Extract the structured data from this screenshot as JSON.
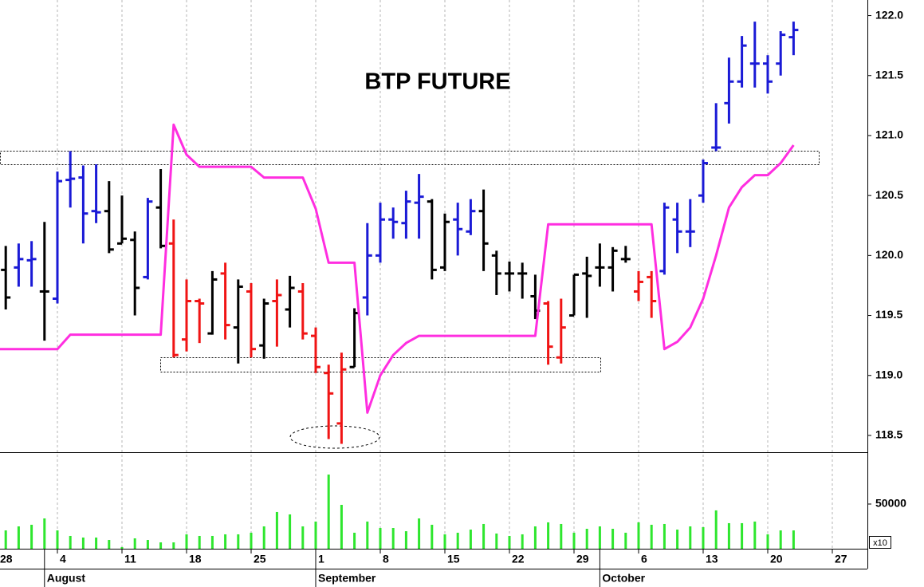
{
  "chart_data": [
    {
      "type": "ohlc",
      "title": "BTP FUTURE",
      "ylim": [
        118.36,
        122.13
      ],
      "yticks": [
        {
          "value": 122,
          "label": "122.0"
        },
        121.5,
        {
          "value": 121,
          "label": "121.0"
        },
        120.5,
        {
          "value": 120,
          "label": "120.0"
        },
        119.5,
        {
          "value": 119,
          "label": "119.0"
        },
        118.5
      ],
      "open": [
        null,
        119.88,
        119.9,
        119.96,
        119.7,
        119.64,
        120.63,
        120.65,
        120.37,
        120.37,
        120.1,
        120.13,
        119.82,
        120.4,
        120.1,
        119.3,
        119.62,
        119.35,
        119.85,
        119.4,
        119.7,
        119.25,
        119.62,
        119.55,
        119.7,
        119.33,
        119.02,
        118.6,
        119.07,
        119.65,
        120.0,
        120.3,
        120.27,
        120.44,
        120.45,
        119.9,
        120.3,
        120.2,
        120.37,
        120.0,
        119.85,
        119.85,
        119.66,
        119.6,
        119.15,
        119.5,
        119.85,
        119.9,
        119.9,
        119.97,
        119.7,
        119.82,
        119.87,
        120.3,
        120.2,
        120.5,
        120.9,
        121.27,
        121.45,
        121.6,
        121.6,
        121.6,
        121.82,
        null,
        null,
        null,
        null,
        null
      ],
      "high": [
        null,
        120.08,
        120.1,
        120.12,
        120.28,
        120.7,
        120.87,
        120.75,
        120.76,
        120.62,
        120.5,
        120.2,
        120.48,
        120.72,
        120.3,
        119.8,
        119.64,
        119.87,
        119.94,
        119.8,
        119.77,
        119.64,
        119.8,
        119.83,
        119.77,
        119.4,
        119.09,
        119.19,
        119.56,
        120.27,
        120.44,
        120.4,
        120.54,
        120.68,
        120.47,
        120.35,
        120.44,
        120.47,
        120.55,
        120.04,
        119.95,
        119.94,
        119.84,
        119.62,
        119.64,
        119.84,
        119.99,
        120.1,
        120.07,
        120.08,
        119.87,
        119.87,
        120.44,
        120.44,
        120.47,
        120.8,
        121.27,
        121.65,
        121.83,
        121.95,
        121.67,
        121.87,
        121.95,
        null,
        null,
        null,
        null,
        null
      ],
      "low": [
        null,
        119.55,
        119.74,
        119.74,
        119.29,
        119.6,
        120.4,
        120.1,
        120.27,
        120.02,
        120.1,
        119.5,
        119.8,
        120.06,
        119.15,
        119.2,
        119.27,
        119.34,
        119.3,
        119.1,
        119.15,
        119.14,
        119.24,
        119.4,
        119.3,
        119.02,
        118.47,
        118.43,
        119.07,
        119.5,
        119.94,
        120.14,
        120.14,
        120.14,
        119.8,
        119.87,
        120.0,
        120.17,
        119.87,
        119.67,
        119.7,
        119.64,
        119.47,
        119.09,
        119.1,
        119.5,
        119.48,
        119.74,
        119.7,
        119.94,
        119.62,
        119.48,
        119.84,
        120.02,
        120.07,
        120.44,
        120.87,
        121.1,
        121.4,
        121.4,
        121.35,
        121.5,
        121.67,
        null,
        null,
        null,
        null,
        null
      ],
      "close": [
        null,
        119.65,
        119.97,
        119.97,
        119.7,
        120.62,
        120.64,
        120.35,
        120.36,
        120.05,
        120.14,
        119.73,
        120.45,
        120.08,
        119.17,
        119.62,
        119.6,
        119.8,
        119.42,
        119.74,
        119.22,
        119.6,
        119.67,
        119.73,
        119.35,
        119.07,
        118.85,
        119.05,
        119.52,
        120.0,
        120.3,
        120.28,
        120.45,
        120.49,
        119.88,
        120.28,
        120.22,
        120.37,
        120.1,
        119.85,
        119.85,
        119.85,
        119.54,
        119.24,
        119.4,
        119.84,
        119.83,
        119.9,
        120.04,
        119.97,
        119.78,
        119.62,
        120.4,
        120.2,
        120.2,
        120.77,
        120.9,
        121.45,
        121.75,
        121.6,
        121.45,
        121.84,
        121.88,
        null,
        null,
        null,
        null,
        null
      ],
      "bar_colors": [
        null,
        "#000000",
        "#1a1ad6",
        "#1a1ad6",
        "#000000",
        "#1a1ad6",
        "#1a1ad6",
        "#1a1ad6",
        "#1a1ad6",
        "#000000",
        "#000000",
        "#000000",
        "#1a1ad6",
        "#000000",
        "#f01414",
        "#f01414",
        "#f01414",
        "#000000",
        "#f01414",
        "#000000",
        "#f01414",
        "#000000",
        "#f01414",
        "#000000",
        "#f01414",
        "#f01414",
        "#f01414",
        "#f01414",
        "#000000",
        "#1a1ad6",
        "#1a1ad6",
        "#1a1ad6",
        "#1a1ad6",
        "#1a1ad6",
        "#000000",
        "#000000",
        "#1a1ad6",
        "#1a1ad6",
        "#000000",
        "#000000",
        "#000000",
        "#000000",
        "#000000",
        "#f01414",
        "#f01414",
        "#000000",
        "#000000",
        "#000000",
        "#000000",
        "#000000",
        "#f01414",
        "#f01414",
        "#1a1ad6",
        "#1a1ad6",
        "#1a1ad6",
        "#1a1ad6",
        "#1a1ad6",
        "#1a1ad6",
        "#1a1ad6",
        "#1a1ad6",
        "#1a1ad6",
        "#1a1ad6",
        "#1a1ad6",
        null,
        null,
        null,
        null,
        null
      ],
      "line": {
        "color": "#ff2ee0",
        "values": [
          119.22,
          119.22,
          119.22,
          119.22,
          119.22,
          119.22,
          119.34,
          119.34,
          119.34,
          119.34,
          119.34,
          119.34,
          119.34,
          119.34,
          121.09,
          120.84,
          120.74,
          120.74,
          120.74,
          120.74,
          120.74,
          120.65,
          120.65,
          120.65,
          120.65,
          120.39,
          119.94,
          119.94,
          119.94,
          118.69,
          119.0,
          119.17,
          119.27,
          119.33,
          119.33,
          119.33,
          119.33,
          119.33,
          119.33,
          119.33,
          119.33,
          119.33,
          119.33,
          120.26,
          120.26,
          120.26,
          120.26,
          120.26,
          120.26,
          120.26,
          120.26,
          120.26,
          119.22,
          119.28,
          119.4,
          119.64,
          120.0,
          120.4,
          120.57,
          120.67,
          120.67,
          120.77,
          120.92,
          null,
          null,
          null,
          null,
          null
        ]
      }
    },
    {
      "type": "bar",
      "color": "#2ee62e",
      "grid": true,
      "multiplier_label": "x10",
      "ylim": [
        0,
        108000
      ],
      "yticks": [
        50000
      ],
      "categories": [
        "28",
        null,
        null,
        null,
        null,
        "4",
        null,
        null,
        null,
        null,
        "11",
        null,
        null,
        null,
        null,
        "18",
        null,
        null,
        null,
        null,
        "25",
        null,
        null,
        null,
        null,
        "1",
        null,
        null,
        null,
        null,
        "8",
        null,
        null,
        null,
        null,
        "15",
        null,
        null,
        null,
        null,
        "22",
        null,
        null,
        null,
        null,
        "29",
        null,
        null,
        null,
        null,
        "6",
        null,
        null,
        null,
        null,
        "13",
        null,
        null,
        null,
        null,
        "20",
        null,
        null,
        null,
        null,
        "27",
        null,
        null
      ],
      "months": [
        null,
        null,
        null,
        null,
        "August",
        null,
        null,
        null,
        null,
        null,
        null,
        null,
        null,
        null,
        null,
        null,
        null,
        null,
        null,
        null,
        null,
        null,
        null,
        null,
        null,
        "September",
        null,
        null,
        null,
        null,
        null,
        null,
        null,
        null,
        null,
        null,
        null,
        null,
        null,
        null,
        null,
        null,
        null,
        null,
        null,
        null,
        null,
        "October",
        null,
        null,
        null,
        null,
        null,
        null,
        null,
        null,
        null,
        null,
        null,
        null,
        null,
        null,
        null,
        null,
        null,
        null,
        null,
        null
      ],
      "values": [
        null,
        20500,
        25000,
        26800,
        33900,
        20500,
        14300,
        12500,
        12500,
        9800,
        1800,
        11600,
        9800,
        7100,
        7100,
        16100,
        14300,
        14300,
        16100,
        16100,
        17900,
        25000,
        41100,
        38400,
        25000,
        30400,
        83000,
        49100,
        17900,
        30400,
        23200,
        23200,
        19600,
        33900,
        26800,
        16100,
        17900,
        21400,
        27700,
        17000,
        14300,
        16100,
        25000,
        29500,
        27700,
        17900,
        22300,
        25000,
        22300,
        17900,
        29500,
        26800,
        27700,
        21400,
        25000,
        24100,
        42900,
        28600,
        28600,
        30400,
        16100,
        20500,
        20500,
        null,
        null,
        null,
        null,
        null
      ]
    }
  ]
}
